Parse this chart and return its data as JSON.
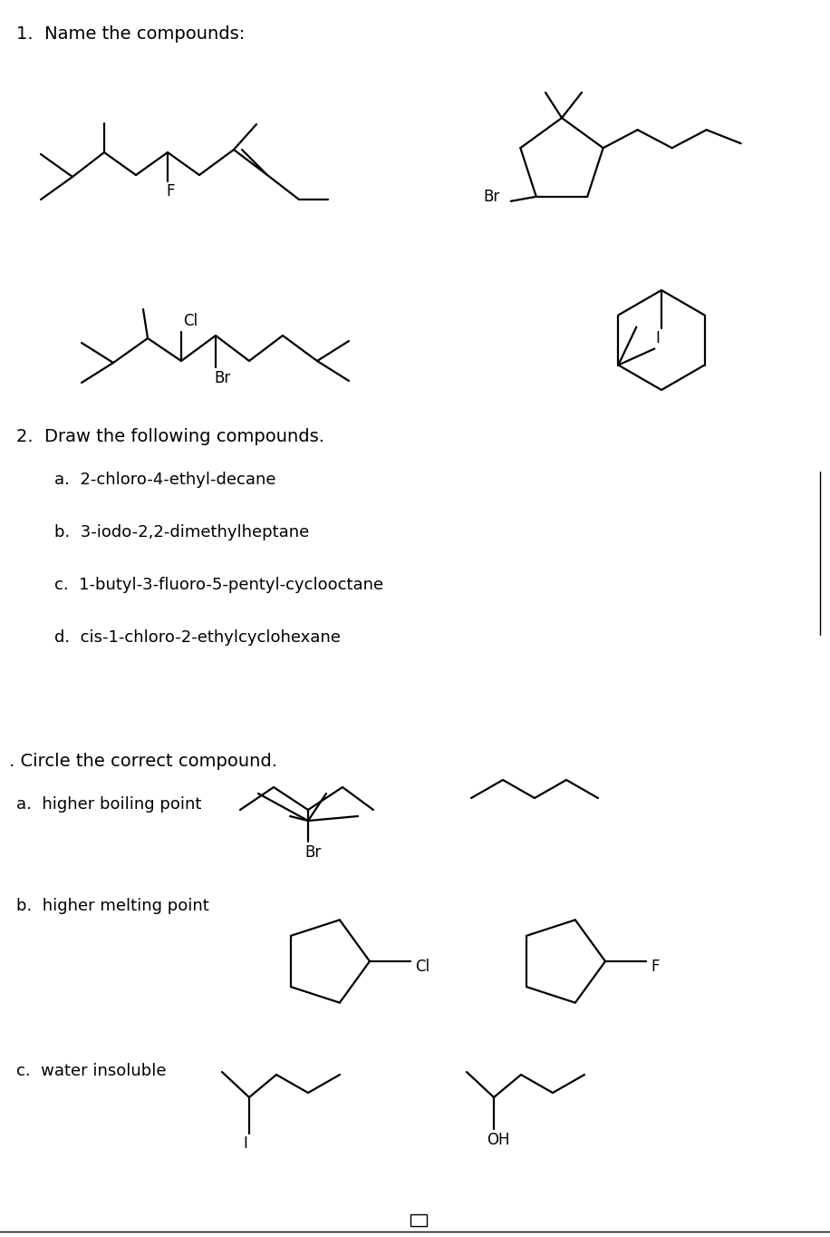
{
  "title1": "1.  Name the compounds:",
  "title2": "2.  Draw the following compounds.",
  "title3": ". Circle the correct compound.",
  "items2": [
    "a.  2-chloro-4-ethyl-decane",
    "b.  3-iodo-2,2-dimethylheptane",
    "c.  1-butyl-3-fluoro-5-pentyl-cyclooctane",
    "d.  cis-1-chloro-2-ethylcyclohexane"
  ],
  "items3_labels": [
    "a.  higher boiling point",
    "b.  higher melting point",
    "c.  water insoluble"
  ],
  "bg_color": "#ffffff",
  "line_color": "#000000",
  "text_color": "#000000",
  "lw": 1.6
}
